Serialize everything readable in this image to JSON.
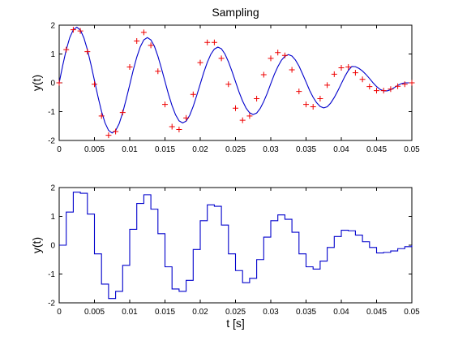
{
  "colors": {
    "line": "#0000cc",
    "marker": "#ee0000",
    "axis": "#000000",
    "background": "#ffffff"
  },
  "chart_data": [
    {
      "id": "top",
      "type": "line",
      "title": "Sampling",
      "xlabel": "",
      "ylabel": "y(t)",
      "xlim": [
        0,
        0.05
      ],
      "ylim": [
        -2,
        2
      ],
      "xticks": [
        0,
        0.005,
        0.01,
        0.015,
        0.02,
        0.025,
        0.03,
        0.035,
        0.04,
        0.045,
        0.05
      ],
      "xtick_labels": [
        "0",
        "0.005",
        "0.01",
        "0.015",
        "0.02",
        "0.025",
        "0.03",
        "0.035",
        "0.04",
        "0.045",
        "0.05"
      ],
      "yticks": [
        -2,
        -1,
        0,
        1,
        2
      ],
      "ytick_labels": [
        "-2",
        "-1",
        "0",
        "1",
        "2"
      ],
      "grid": false,
      "series": [
        {
          "style": "line",
          "x": [
            0,
            0.0005,
            0.001,
            0.0015,
            0.002,
            0.0025,
            0.003,
            0.0035,
            0.004,
            0.0045,
            0.005,
            0.0055,
            0.006,
            0.0065,
            0.007,
            0.0075,
            0.008,
            0.0085,
            0.009,
            0.0095,
            0.01,
            0.0105,
            0.011,
            0.0115,
            0.012,
            0.0125,
            0.013,
            0.0135,
            0.014,
            0.0145,
            0.015,
            0.0155,
            0.016,
            0.0165,
            0.017,
            0.0175,
            0.018,
            0.0185,
            0.019,
            0.0195,
            0.02,
            0.0205,
            0.021,
            0.0215,
            0.022,
            0.0225,
            0.023,
            0.0235,
            0.024,
            0.0245,
            0.025,
            0.0255,
            0.026,
            0.0265,
            0.027,
            0.0275,
            0.028,
            0.0285,
            0.029,
            0.0295,
            0.03,
            0.0305,
            0.031,
            0.0315,
            0.032,
            0.0325,
            0.033,
            0.0335,
            0.034,
            0.0345,
            0.035,
            0.0355,
            0.036,
            0.0365,
            0.037,
            0.0375,
            0.038,
            0.0385,
            0.039,
            0.0395,
            0.04,
            0.0405,
            0.041,
            0.0415,
            0.042,
            0.0425,
            0.043,
            0.0435,
            0.044,
            0.0445,
            0.045,
            0.0455,
            0.046,
            0.0465,
            0.047,
            0.0475,
            0.048,
            0.0485,
            0.049,
            0.0495,
            0.05
          ],
          "y": [
            0.0,
            0.603,
            1.145,
            1.57,
            1.84,
            1.93,
            1.83,
            1.56,
            1.15,
            0.64,
            0.08,
            -0.48,
            -0.99,
            -1.39,
            -1.65,
            -1.74,
            -1.66,
            -1.42,
            -1.04,
            -0.57,
            -0.07,
            0.44,
            0.89,
            1.25,
            1.49,
            1.57,
            1.49,
            1.27,
            0.92,
            0.5,
            0.05,
            -0.4,
            -0.79,
            -1.11,
            -1.32,
            -1.39,
            -1.33,
            -1.13,
            -0.82,
            -0.44,
            -0.04,
            0.36,
            0.71,
            0.99,
            1.17,
            1.24,
            1.18,
            1.0,
            0.73,
            0.4,
            0.04,
            -0.32,
            -0.63,
            -0.88,
            -1.04,
            -1.1,
            -1.05,
            -0.89,
            -0.65,
            -0.36,
            -0.03,
            0.29,
            0.56,
            0.78,
            0.92,
            0.98,
            0.93,
            0.79,
            0.58,
            0.31,
            0.03,
            -0.26,
            -0.5,
            -0.69,
            -0.82,
            -0.87,
            -0.83,
            -0.7,
            -0.51,
            -0.28,
            -0.03,
            0.22,
            0.43,
            0.57,
            0.56,
            0.5,
            0.41,
            0.29,
            0.15,
            0.0,
            -0.13,
            -0.23,
            -0.28,
            -0.28,
            -0.24,
            -0.17,
            -0.09,
            -0.03,
            0.0,
            0.0,
            0.0
          ]
        },
        {
          "style": "marker",
          "marker": "+",
          "x": [
            0,
            0.001,
            0.002,
            0.003,
            0.004,
            0.005,
            0.006,
            0.007,
            0.008,
            0.009,
            0.01,
            0.011,
            0.012,
            0.013,
            0.014,
            0.015,
            0.016,
            0.017,
            0.018,
            0.019,
            0.02,
            0.021,
            0.022,
            0.023,
            0.024,
            0.025,
            0.026,
            0.027,
            0.028,
            0.029,
            0.03,
            0.031,
            0.032,
            0.033,
            0.034,
            0.035,
            0.036,
            0.037,
            0.038,
            0.039,
            0.04,
            0.041,
            0.042,
            0.043,
            0.044,
            0.045,
            0.046,
            0.047,
            0.048,
            0.049,
            0.05
          ],
          "y": [
            0.0,
            1.15,
            1.84,
            1.8,
            1.08,
            -0.05,
            -1.15,
            -1.82,
            -1.69,
            -1.03,
            0.55,
            1.45,
            1.75,
            1.3,
            0.4,
            -0.75,
            -1.52,
            -1.62,
            -1.22,
            -0.4,
            0.7,
            1.4,
            1.4,
            0.85,
            -0.05,
            -0.88,
            -1.3,
            -1.15,
            -0.55,
            0.28,
            0.85,
            1.05,
            0.95,
            0.45,
            -0.3,
            -0.75,
            -0.83,
            -0.55,
            -0.08,
            0.3,
            0.52,
            0.55,
            0.35,
            0.12,
            -0.13,
            -0.27,
            -0.27,
            -0.22,
            -0.12,
            -0.05,
            0.0
          ]
        }
      ]
    },
    {
      "id": "bottom",
      "type": "line",
      "title": "",
      "xlabel": "t [s]",
      "ylabel": "y(t)",
      "xlim": [
        0,
        0.05
      ],
      "ylim": [
        -2,
        2
      ],
      "xticks": [
        0,
        0.005,
        0.01,
        0.015,
        0.02,
        0.025,
        0.03,
        0.035,
        0.04,
        0.045,
        0.05
      ],
      "xtick_labels": [
        "0",
        "0.005",
        "0.01",
        "0.015",
        "0.02",
        "0.025",
        "0.03",
        "0.035",
        "0.04",
        "0.045",
        "0.05"
      ],
      "yticks": [
        -2,
        -1,
        0,
        1,
        2
      ],
      "ytick_labels": [
        "-2",
        "-1",
        "0",
        "1",
        "2"
      ],
      "grid": false,
      "series": [
        {
          "style": "step",
          "x": [
            0,
            0.001,
            0.002,
            0.003,
            0.004,
            0.005,
            0.006,
            0.007,
            0.008,
            0.009,
            0.01,
            0.011,
            0.012,
            0.013,
            0.014,
            0.015,
            0.016,
            0.017,
            0.018,
            0.019,
            0.02,
            0.021,
            0.022,
            0.023,
            0.024,
            0.025,
            0.026,
            0.027,
            0.028,
            0.029,
            0.03,
            0.031,
            0.032,
            0.033,
            0.034,
            0.035,
            0.036,
            0.037,
            0.038,
            0.039,
            0.04,
            0.041,
            0.042,
            0.043,
            0.044,
            0.045,
            0.046,
            0.047,
            0.048,
            0.049,
            0.05
          ],
          "y": [
            0.0,
            1.15,
            1.84,
            1.8,
            1.08,
            -0.3,
            -1.35,
            -1.85,
            -1.6,
            -0.7,
            0.55,
            1.45,
            1.75,
            1.25,
            0.4,
            -0.75,
            -1.52,
            -1.6,
            -1.22,
            -0.15,
            0.85,
            1.4,
            1.35,
            0.7,
            -0.3,
            -0.88,
            -1.3,
            -1.15,
            -0.5,
            0.28,
            0.85,
            1.05,
            0.9,
            0.45,
            -0.3,
            -0.75,
            -0.83,
            -0.55,
            -0.08,
            0.3,
            0.52,
            0.5,
            0.35,
            0.12,
            -0.08,
            -0.27,
            -0.25,
            -0.2,
            -0.12,
            -0.05,
            0.0
          ]
        }
      ]
    }
  ]
}
